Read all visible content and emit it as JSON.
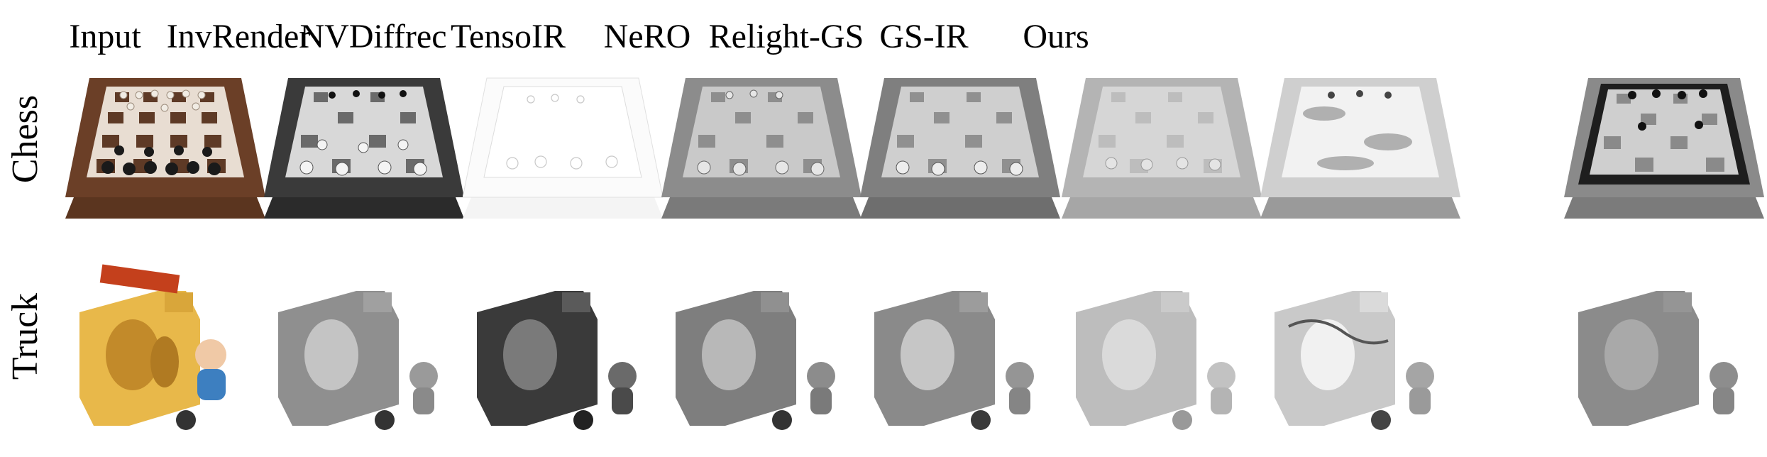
{
  "columns": [
    "Input",
    "InvRender",
    "NVDiffrec",
    "TensoIR",
    "NeRO",
    "Relight-GS",
    "GS-IR",
    "Ours"
  ],
  "rows": [
    "Chess",
    "Truck"
  ],
  "colors": {
    "input_board_frame": "#6b3f27",
    "input_board_light": "#e8ddd2",
    "input_board_dark": "#5e3a26",
    "truck_yellow": "#e8b84a",
    "truck_red": "#c4401c",
    "figure_blue": "#3d7fc0"
  }
}
